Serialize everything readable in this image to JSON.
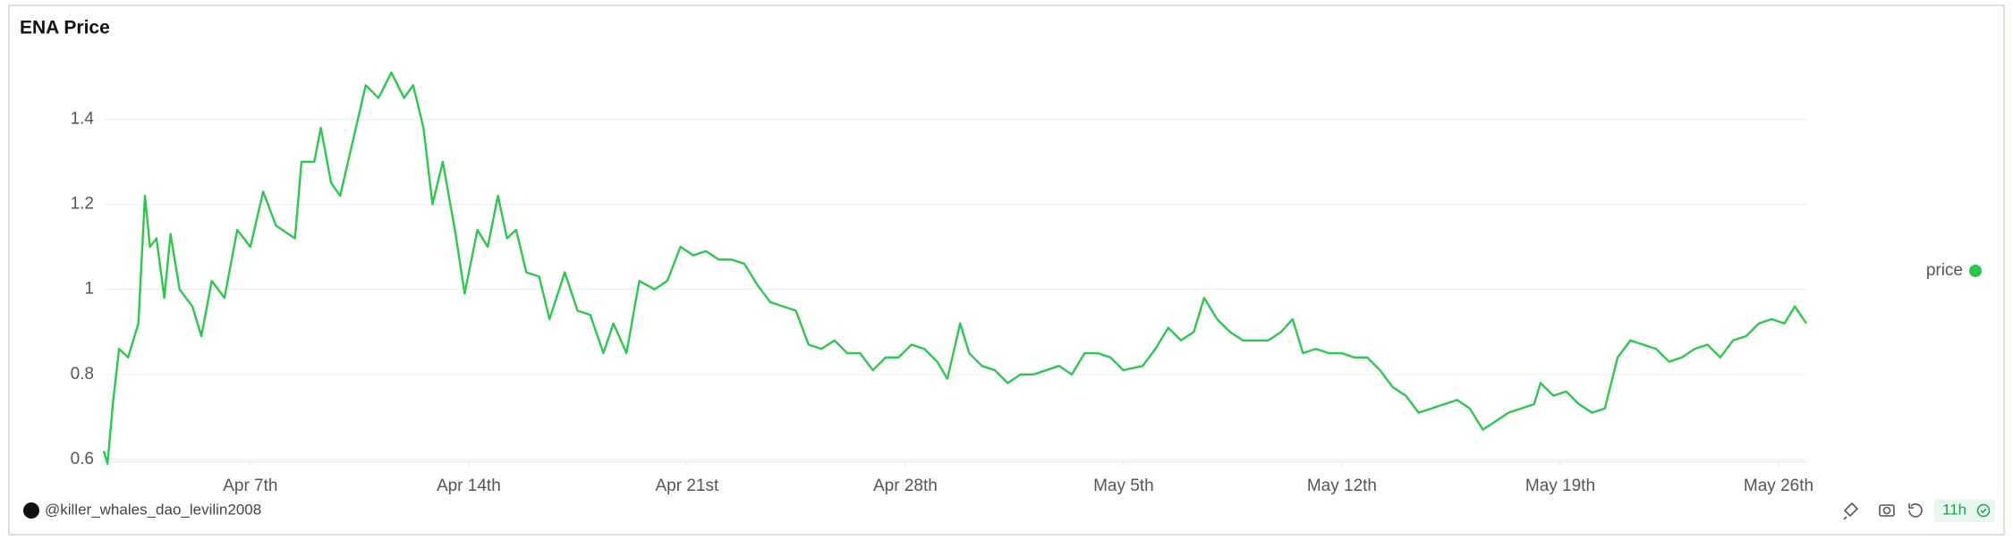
{
  "chart_data": {
    "type": "line",
    "title": "ENA Price",
    "x": [
      2.3,
      2.42,
      2.59,
      2.79,
      3.08,
      3.41,
      3.62,
      3.78,
      3.99,
      4.24,
      4.44,
      4.73,
      5.14,
      5.43,
      5.76,
      6.17,
      6.58,
      7.0,
      7.41,
      7.82,
      8.43,
      8.64,
      9.05,
      9.26,
      9.59,
      9.88,
      10.29,
      10.7,
      11.11,
      11.52,
      11.93,
      12.22,
      12.55,
      12.84,
      13.17,
      13.58,
      13.87,
      14.28,
      14.61,
      14.94,
      15.23,
      15.52,
      15.85,
      16.26,
      16.59,
      17.08,
      17.49,
      17.9,
      18.32,
      18.64,
      19.06,
      19.47,
      19.96,
      20.37,
      20.79,
      21.2,
      21.61,
      22.02,
      22.43,
      22.84,
      23.26,
      23.67,
      24.08,
      24.49,
      24.9,
      25.31,
      25.73,
      26.14,
      26.55,
      26.96,
      27.37,
      27.78,
      28.2,
      28.61,
      29.02,
      29.35,
      29.76,
      30.05,
      30.46,
      30.87,
      31.28,
      31.7,
      32.11,
      32.52,
      32.93,
      33.34,
      33.75,
      34.17,
      34.58,
      34.99,
      35.61,
      36.02,
      36.43,
      36.84,
      37.25,
      37.58,
      38.0,
      38.41,
      38.82,
      39.23,
      39.64,
      40.05,
      40.42,
      40.75,
      41.16,
      41.58,
      41.99,
      42.4,
      42.81,
      43.22,
      43.63,
      44.05,
      44.46,
      44.87,
      45.28,
      45.69,
      46.1,
      46.52,
      46.93,
      47.34,
      47.75,
      48.16,
      48.37,
      48.78,
      49.19,
      49.6,
      50.02,
      50.43,
      50.84,
      51.25,
      51.66,
      52.07,
      52.49,
      52.9,
      53.31,
      53.72,
      54.13,
      54.54,
      54.96,
      55.37,
      55.78,
      56.19,
      56.52,
      56.89
    ],
    "series": [
      {
        "name": "price",
        "color": "#2ec64f",
        "values": [
          0.62,
          0.59,
          0.73,
          0.86,
          0.84,
          0.92,
          1.22,
          1.1,
          1.12,
          0.98,
          1.13,
          1.0,
          0.96,
          0.89,
          1.02,
          0.98,
          1.14,
          1.1,
          1.23,
          1.15,
          1.12,
          1.3,
          1.3,
          1.38,
          1.25,
          1.22,
          1.35,
          1.48,
          1.45,
          1.51,
          1.45,
          1.48,
          1.38,
          1.2,
          1.3,
          1.13,
          0.99,
          1.14,
          1.1,
          1.22,
          1.12,
          1.14,
          1.04,
          1.03,
          0.93,
          1.04,
          0.95,
          0.94,
          0.85,
          0.92,
          0.85,
          1.02,
          1.0,
          1.02,
          1.1,
          1.08,
          1.09,
          1.07,
          1.07,
          1.06,
          1.01,
          0.97,
          0.96,
          0.95,
          0.87,
          0.86,
          0.88,
          0.85,
          0.85,
          0.81,
          0.84,
          0.84,
          0.87,
          0.86,
          0.83,
          0.79,
          0.92,
          0.85,
          0.82,
          0.81,
          0.78,
          0.8,
          0.8,
          0.81,
          0.82,
          0.8,
          0.85,
          0.85,
          0.84,
          0.81,
          0.82,
          0.86,
          0.91,
          0.88,
          0.9,
          0.98,
          0.93,
          0.9,
          0.88,
          0.88,
          0.88,
          0.9,
          0.93,
          0.85,
          0.86,
          0.85,
          0.85,
          0.84,
          0.84,
          0.81,
          0.77,
          0.75,
          0.71,
          0.72,
          0.73,
          0.74,
          0.72,
          0.67,
          0.69,
          0.71,
          0.72,
          0.73,
          0.78,
          0.75,
          0.76,
          0.73,
          0.71,
          0.72,
          0.84,
          0.88,
          0.87,
          0.86,
          0.83,
          0.84,
          0.86,
          0.87,
          0.84,
          0.88,
          0.89,
          0.92,
          0.93,
          0.92,
          0.96,
          0.92
        ]
      }
    ],
    "xlim": [
      2.3,
      56.89
    ],
    "xticks": [
      {
        "value": 7,
        "label": "Apr 7th"
      },
      {
        "value": 14,
        "label": "Apr 14th"
      },
      {
        "value": 21,
        "label": "Apr 21st"
      },
      {
        "value": 28,
        "label": "Apr 28th"
      },
      {
        "value": 35,
        "label": "May 5th"
      },
      {
        "value": 42,
        "label": "May 12th"
      },
      {
        "value": 49,
        "label": "May 19th"
      },
      {
        "value": 56,
        "label": "May 26th"
      }
    ],
    "ylim": [
      0.58,
      1.55
    ],
    "yticks": [
      0.6,
      0.8,
      1,
      1.2,
      1.4
    ],
    "grid": true,
    "legend": "right"
  },
  "footer": {
    "author": "@killer_whales_dao_levilin2008",
    "refresh": "11h"
  }
}
